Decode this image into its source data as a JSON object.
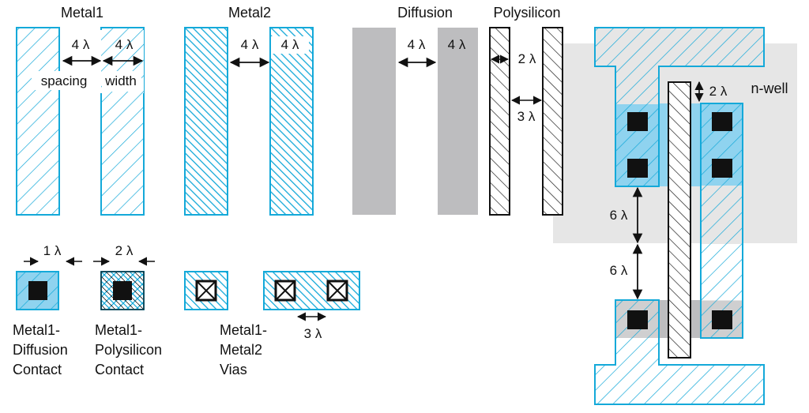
{
  "colors": {
    "metal": "#14a9d9",
    "metal_fill": "#ffffff",
    "contact_bg": "#8fd3ef",
    "diffusion": "#bdbdbf",
    "well": "#e6e6e6",
    "poly_stroke": "#111111",
    "contact": "#111111",
    "arrow": "#111111"
  },
  "titles": {
    "metal1": "Metal1",
    "metal2": "Metal2",
    "diffusion": "Diffusion",
    "polysilicon": "Polysilicon"
  },
  "labels": {
    "m1_spacing_dim": "4 λ",
    "m1_width_dim": "4 λ",
    "m1_spacing": "spacing",
    "m1_width": "width",
    "m2_spacing_dim": "4 λ",
    "m2_width_dim": "4 λ",
    "diff_spacing_dim": "4 λ",
    "diff_width_dim": "4 λ",
    "poly_width_dim": "2 λ",
    "poly_spacing_dim": "3 λ",
    "contact_overlap_1": "1 λ",
    "contact_overlap_2": "2 λ",
    "via_spacing": "3 λ",
    "nwell": "n-well",
    "poly_extension": "2 λ",
    "spacing_6a": "6 λ",
    "spacing_6b": "6 λ"
  },
  "contacts": {
    "m1_diff": [
      "Metal1-",
      "Diffusion",
      "Contact"
    ],
    "m1_poly": [
      "Metal1-",
      "Polysilicon",
      "Contact"
    ],
    "m1_m2": [
      "Metal1-",
      "Metal2",
      "Vias"
    ]
  }
}
